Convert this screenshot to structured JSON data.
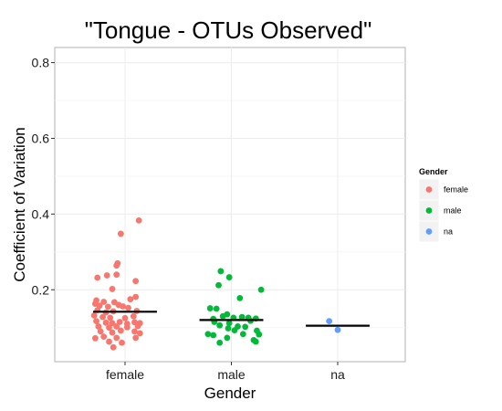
{
  "chart_data": {
    "type": "scatter",
    "title": "\"Tongue - OTUs Observed\"",
    "xlabel": "Gender",
    "ylabel": "Coefficient of Variation",
    "categories": [
      "female",
      "male",
      "na"
    ],
    "ylim": [
      0.01,
      0.84
    ],
    "yticks": [
      0.2,
      0.4,
      0.6,
      0.8
    ],
    "ytick_labels": [
      "0.2",
      "0.4",
      "0.6",
      "0.8"
    ],
    "grid": true,
    "legend": {
      "title": "Gender",
      "position": "right",
      "entries": [
        "female",
        "male",
        "na"
      ]
    },
    "series": [
      {
        "name": "female",
        "color": "#F8766D",
        "mean": 0.142,
        "points": [
          {
            "x": 0.13,
            "y": 0.383
          },
          {
            "x": -0.04,
            "y": 0.348
          },
          {
            "x": -0.07,
            "y": 0.27
          },
          {
            "x": -0.08,
            "y": 0.264
          },
          {
            "x": -0.17,
            "y": 0.238
          },
          {
            "x": -0.26,
            "y": 0.232
          },
          {
            "x": -0.08,
            "y": 0.24
          },
          {
            "x": 0.1,
            "y": 0.223
          },
          {
            "x": -0.12,
            "y": 0.202
          },
          {
            "x": -0.27,
            "y": 0.172
          },
          {
            "x": -0.28,
            "y": 0.163
          },
          {
            "x": -0.2,
            "y": 0.168
          },
          {
            "x": -0.1,
            "y": 0.167
          },
          {
            "x": 0.05,
            "y": 0.175
          },
          {
            "x": 0.1,
            "y": 0.181
          },
          {
            "x": -0.24,
            "y": 0.158
          },
          {
            "x": -0.16,
            "y": 0.155
          },
          {
            "x": -0.06,
            "y": 0.16
          },
          {
            "x": -0.02,
            "y": 0.156
          },
          {
            "x": 0.03,
            "y": 0.152
          },
          {
            "x": -0.26,
            "y": 0.146
          },
          {
            "x": -0.18,
            "y": 0.14
          },
          {
            "x": -0.11,
            "y": 0.143
          },
          {
            "x": 0.11,
            "y": 0.144
          },
          {
            "x": -0.29,
            "y": 0.132
          },
          {
            "x": -0.21,
            "y": 0.128
          },
          {
            "x": -0.14,
            "y": 0.126
          },
          {
            "x": 0.0,
            "y": 0.125
          },
          {
            "x": 0.08,
            "y": 0.13
          },
          {
            "x": -0.27,
            "y": 0.117
          },
          {
            "x": -0.18,
            "y": 0.113
          },
          {
            "x": -0.12,
            "y": 0.112
          },
          {
            "x": -0.05,
            "y": 0.115
          },
          {
            "x": 0.02,
            "y": 0.11
          },
          {
            "x": 0.09,
            "y": 0.114
          },
          {
            "x": 0.14,
            "y": 0.112
          },
          {
            "x": -0.25,
            "y": 0.103
          },
          {
            "x": -0.15,
            "y": 0.1
          },
          {
            "x": -0.08,
            "y": 0.103
          },
          {
            "x": 0.02,
            "y": 0.101
          },
          {
            "x": 0.12,
            "y": 0.104
          },
          {
            "x": -0.23,
            "y": 0.09
          },
          {
            "x": -0.12,
            "y": 0.087
          },
          {
            "x": -0.04,
            "y": 0.092
          },
          {
            "x": 0.09,
            "y": 0.09
          },
          {
            "x": 0.14,
            "y": 0.085
          },
          {
            "x": -0.2,
            "y": 0.076
          },
          {
            "x": -0.08,
            "y": 0.073
          },
          {
            "x": -0.28,
            "y": 0.072
          },
          {
            "x": 0.1,
            "y": 0.073
          },
          {
            "x": -0.15,
            "y": 0.063
          },
          {
            "x": -0.03,
            "y": 0.06
          },
          {
            "x": -0.11,
            "y": 0.048
          }
        ]
      },
      {
        "name": "male",
        "color": "#00BA38",
        "mean": 0.12,
        "points": [
          {
            "x": -0.1,
            "y": 0.249
          },
          {
            "x": -0.02,
            "y": 0.233
          },
          {
            "x": -0.12,
            "y": 0.212
          },
          {
            "x": 0.28,
            "y": 0.2
          },
          {
            "x": 0.08,
            "y": 0.178
          },
          {
            "x": -0.2,
            "y": 0.151
          },
          {
            "x": -0.14,
            "y": 0.15
          },
          {
            "x": -0.08,
            "y": 0.13
          },
          {
            "x": -0.04,
            "y": 0.135
          },
          {
            "x": -0.17,
            "y": 0.123
          },
          {
            "x": 0.02,
            "y": 0.126
          },
          {
            "x": 0.1,
            "y": 0.128
          },
          {
            "x": 0.16,
            "y": 0.126
          },
          {
            "x": 0.23,
            "y": 0.124
          },
          {
            "x": -0.16,
            "y": 0.115
          },
          {
            "x": -0.02,
            "y": 0.112
          },
          {
            "x": 0.18,
            "y": 0.118
          },
          {
            "x": -0.11,
            "y": 0.106
          },
          {
            "x": 0.06,
            "y": 0.103
          },
          {
            "x": 0.13,
            "y": 0.102
          },
          {
            "x": -0.03,
            "y": 0.098
          },
          {
            "x": 0.03,
            "y": 0.093
          },
          {
            "x": 0.24,
            "y": 0.092
          },
          {
            "x": -0.22,
            "y": 0.083
          },
          {
            "x": -0.17,
            "y": 0.08
          },
          {
            "x": 0.11,
            "y": 0.083
          },
          {
            "x": 0.26,
            "y": 0.082
          },
          {
            "x": -0.04,
            "y": 0.073
          },
          {
            "x": 0.21,
            "y": 0.067
          },
          {
            "x": -0.11,
            "y": 0.06
          },
          {
            "x": 0.23,
            "y": 0.063
          }
        ]
      },
      {
        "name": "na",
        "color": "#619CFF",
        "mean": 0.105,
        "points": [
          {
            "x": -0.08,
            "y": 0.117
          },
          {
            "x": 0.0,
            "y": 0.094
          }
        ]
      }
    ]
  }
}
